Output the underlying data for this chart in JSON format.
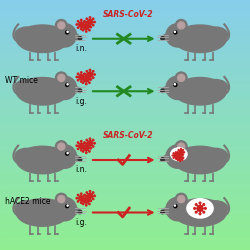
{
  "mouse_body_color": "#777777",
  "mouse_dark_color": "#606060",
  "mouse_ear_inner": "#b8a0a0",
  "wt_label": "WT mice",
  "hace2_label": "hACE2 mice",
  "sars_label": "SARS-CoV-2",
  "in_label": "i.n.",
  "ig_label": "i.g.",
  "green_arrow_color": "#228822",
  "red_arrow_color": "#CC2222",
  "virus_color": "#CC2222",
  "sars_text_color": "#CC2222",
  "rows": [
    0.845,
    0.635,
    0.36,
    0.15
  ],
  "lmx": 0.17,
  "rmx": 0.8,
  "asx": 0.36,
  "aex": 0.63
}
